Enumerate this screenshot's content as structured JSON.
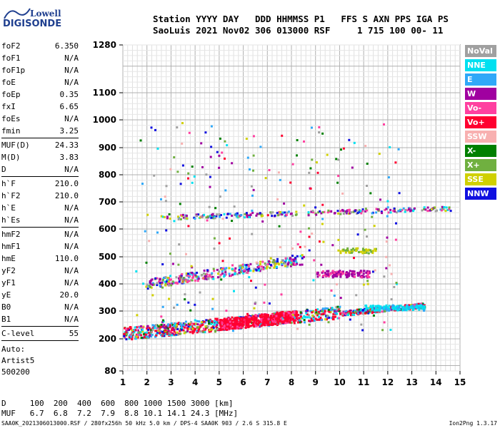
{
  "logo": {
    "top": "Lowell",
    "bottom": "DIGISONDE"
  },
  "header": {
    "line1": "Station YYYY DAY   DDD HHMMSS P1   FFS S AXN PPS IGA PS",
    "line2": "SaoLuis 2021 Nov02 306 013000 RSF     1 715 100 00- 11"
  },
  "params": [
    {
      "k": "foF2",
      "v": "6.350"
    },
    {
      "k": "foF1",
      "v": "N/A"
    },
    {
      "k": "foF1p",
      "v": "N/A"
    },
    {
      "k": "foE",
      "v": "N/A"
    },
    {
      "k": "foEp",
      "v": "0.35"
    },
    {
      "k": "fxI",
      "v": "6.65"
    },
    {
      "k": "foEs",
      "v": "N/A"
    },
    {
      "k": "fmin",
      "v": "3.25"
    },
    {
      "sep": true
    },
    {
      "k": "MUF(D)",
      "v": "24.33"
    },
    {
      "k": "M(D)",
      "v": "3.83"
    },
    {
      "k": "D",
      "v": "N/A"
    },
    {
      "sep": true
    },
    {
      "k": "h`F",
      "v": "210.0"
    },
    {
      "k": "h`F2",
      "v": "210.0"
    },
    {
      "k": "h`E",
      "v": "N/A"
    },
    {
      "k": "h`Es",
      "v": "N/A"
    },
    {
      "sep": true
    },
    {
      "k": "hmF2",
      "v": "N/A"
    },
    {
      "k": "hmF1",
      "v": "N/A"
    },
    {
      "k": "hmE",
      "v": "110.0"
    },
    {
      "k": "yF2",
      "v": "N/A"
    },
    {
      "k": "yF1",
      "v": "N/A"
    },
    {
      "k": "yE",
      "v": "20.0"
    },
    {
      "k": "B0",
      "v": "N/A"
    },
    {
      "k": "B1",
      "v": "N/A"
    },
    {
      "sep": true
    },
    {
      "k": "C-level",
      "v": "55"
    },
    {
      "sep": true
    }
  ],
  "auto": [
    "Auto:",
    "Artist5",
    "500200"
  ],
  "legend": [
    {
      "label": "NoVal",
      "color": "#a0a0a0"
    },
    {
      "label": "NNE",
      "color": "#00e0f0"
    },
    {
      "label": "E",
      "color": "#30a8f8"
    },
    {
      "label": "W",
      "color": "#a000a0"
    },
    {
      "label": "Vo-",
      "color": "#ff40a0"
    },
    {
      "label": "Vo+",
      "color": "#ff0030"
    },
    {
      "label": "SSW",
      "color": "#f8b0b0"
    },
    {
      "label": "X-",
      "color": "#008000"
    },
    {
      "label": "X+",
      "color": "#70b040"
    },
    {
      "label": "SSE",
      "color": "#d0d000"
    },
    {
      "label": "NNW",
      "color": "#1010e0"
    }
  ],
  "bottom": {
    "dline": "D     100  200  400  600  800 1000 1500 3000 [km]",
    "mline": "MUF   6.7  6.8  7.2  7.9  8.8 10.1 14.1 24.3 [MHz]"
  },
  "footer": {
    "left": "SAA0K_2021306013000.RSF / 280fx256h 50 kHz 5.0 km / DPS-4 SAA0K 903 / 2.6 S 315.8 E",
    "right": "Ion2Png 1.3.17"
  },
  "chart_data": {
    "type": "scatter",
    "xlim": [
      1,
      15
    ],
    "ylim": [
      80,
      1280
    ],
    "x_ticks": [
      "1",
      "2",
      "3",
      "4",
      "5",
      "6",
      "7",
      "8",
      "9",
      "10",
      "11",
      "12",
      "13",
      "14",
      "15"
    ],
    "y_ticks": [
      {
        "v": 1280,
        "label": "1280"
      },
      {
        "v": 1100,
        "label": "1100"
      },
      {
        "v": 1000,
        "label": "1000"
      },
      {
        "v": 900,
        "label": "900"
      },
      {
        "v": 800,
        "label": "800"
      },
      {
        "v": 700,
        "label": "700"
      },
      {
        "v": 600,
        "label": "600"
      },
      {
        "v": 500,
        "label": "500"
      },
      {
        "v": 400,
        "label": "400"
      },
      {
        "v": 300,
        "label": "300"
      },
      {
        "v": 200,
        "label": "200"
      },
      {
        "v": 80,
        "label": "80"
      }
    ],
    "y_scale": "nonlinear (height axis of ionogram)",
    "traces": [
      {
        "name": "F trace",
        "x_start": 1.0,
        "x_end": 13.5,
        "y_start": 215,
        "y_end": 320
      },
      {
        "name": "2nd echo",
        "x_start": 1.8,
        "x_end": 8.5,
        "y_start": 400,
        "y_end": 500
      },
      {
        "name": "3rd echo",
        "x_start": 2.5,
        "x_end": 14.7,
        "y_start": 645,
        "y_end": 680
      }
    ]
  }
}
